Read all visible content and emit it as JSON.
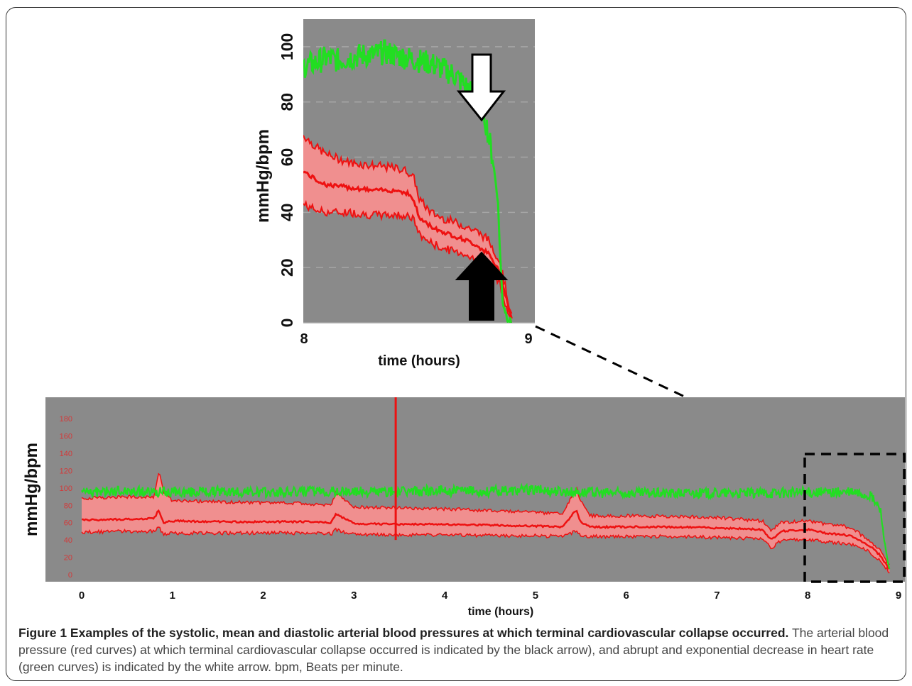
{
  "colors": {
    "plot_bg": "#8a8a8a",
    "gridline": "#a6a6a6",
    "heart_rate": "#22dd22",
    "blood_pressure_line": "#ee1111",
    "blood_pressure_band": "#f08f8f",
    "dashes": "#000000"
  },
  "icons": {
    "white_arrow": "down-arrow-icon",
    "black_arrow": "up-arrow-icon"
  },
  "caption": {
    "title": "Figure 1 Examples of the systolic, mean and diastolic arterial blood pressures at which terminal cardiovascular collapse occurred.",
    "body": "The arterial blood pressure (red curves) at which terminal cardiovascular collapse occurred is indicated by the black arrow), and abrupt and exponential decrease in heart rate (green curves) is indicated by the white arrow. bpm, Beats per minute."
  },
  "chart_data": [
    {
      "type": "line",
      "xlabel": "time (hours)",
      "ylabel": "mmHg/bpm",
      "xlim": [
        8,
        9
      ],
      "ylim": [
        0,
        110
      ],
      "xticks": [
        "8",
        "9"
      ],
      "yticks": [
        "0",
        "20",
        "40",
        "60",
        "80",
        "100"
      ],
      "grid": true,
      "series": [
        {
          "key": "heart_rate",
          "x": [
            8.0,
            8.05,
            8.1,
            8.15,
            8.2,
            8.25,
            8.3,
            8.35,
            8.4,
            8.45,
            8.5,
            8.55,
            8.6,
            8.65,
            8.7,
            8.75,
            8.78,
            8.8,
            8.82,
            8.84,
            8.85,
            8.86,
            8.88,
            8.9
          ],
          "y": [
            93,
            94,
            96,
            95,
            96,
            97,
            97,
            98,
            97,
            96,
            95,
            94,
            92,
            90,
            86,
            81,
            76,
            68,
            58,
            45,
            25,
            8,
            2,
            0
          ]
        },
        {
          "key": "systolic",
          "x": [
            8.0,
            8.05,
            8.1,
            8.2,
            8.3,
            8.4,
            8.45,
            8.48,
            8.5,
            8.55,
            8.6,
            8.7,
            8.75,
            8.8,
            8.85,
            8.88,
            8.9
          ],
          "y": [
            68,
            64,
            61,
            58,
            57,
            56,
            55,
            52,
            45,
            40,
            38,
            35,
            33,
            30,
            22,
            10,
            2
          ]
        },
        {
          "key": "mean",
          "x": [
            8.0,
            8.05,
            8.1,
            8.2,
            8.3,
            8.4,
            8.45,
            8.48,
            8.5,
            8.55,
            8.6,
            8.7,
            8.75,
            8.8,
            8.85,
            8.88,
            8.9
          ],
          "y": [
            55,
            52,
            50,
            49,
            48,
            48,
            47,
            44,
            38,
            35,
            33,
            30,
            28,
            25,
            18,
            8,
            1
          ]
        },
        {
          "key": "diastolic",
          "x": [
            8.0,
            8.05,
            8.1,
            8.2,
            8.3,
            8.4,
            8.45,
            8.48,
            8.5,
            8.55,
            8.6,
            8.7,
            8.75,
            8.8,
            8.85,
            8.88,
            8.9
          ],
          "y": [
            43,
            41,
            40,
            40,
            39,
            39,
            39,
            37,
            32,
            29,
            27,
            25,
            22,
            19,
            14,
            5,
            0
          ]
        }
      ],
      "annotations": [
        "white arrow pointing down at heart rate decline (~8.78 h)",
        "black arrow pointing up at blood pressure collapse (~8.78 h)"
      ]
    },
    {
      "type": "line",
      "xlabel": "time (hours)",
      "ylabel": "mmHg/bpm",
      "xlim": [
        0,
        9
      ],
      "ylim": [
        0,
        190
      ],
      "xticks": [
        "0",
        "1",
        "2",
        "3",
        "4",
        "5",
        "6",
        "7",
        "8",
        "9"
      ],
      "yticks": [
        "0",
        "20",
        "40",
        "60",
        "80",
        "100",
        "120",
        "140",
        "160",
        "180"
      ],
      "grid": false,
      "series": [
        {
          "key": "heart_rate",
          "x": [
            0,
            0.5,
            1,
            1.5,
            2,
            2.5,
            3,
            3.5,
            4,
            4.5,
            5,
            5.5,
            6,
            6.5,
            7,
            7.5,
            8,
            8.3,
            8.5,
            8.6,
            8.7,
            8.8,
            8.85,
            8.9
          ],
          "y": [
            95,
            96,
            95,
            96,
            95,
            96,
            96,
            96,
            97,
            96,
            98,
            95,
            94,
            94,
            94,
            94,
            95,
            95,
            95,
            93,
            90,
            75,
            35,
            5
          ]
        },
        {
          "key": "systolic",
          "x": [
            0,
            0.5,
            0.8,
            0.85,
            0.9,
            1,
            1.5,
            2,
            2.5,
            2.75,
            2.8,
            3,
            3.5,
            4,
            4.5,
            5,
            5.3,
            5.45,
            5.5,
            5.6,
            6,
            6.5,
            7,
            7.5,
            7.6,
            7.7,
            8,
            8.2,
            8.4,
            8.5,
            8.6,
            8.7,
            8.8,
            8.9
          ],
          "y": [
            88,
            90,
            90,
            120,
            95,
            85,
            84,
            83,
            82,
            80,
            95,
            78,
            77,
            76,
            74,
            72,
            70,
            100,
            85,
            68,
            68,
            67,
            66,
            62,
            50,
            60,
            62,
            58,
            56,
            53,
            45,
            38,
            28,
            10
          ]
        },
        {
          "key": "mean",
          "x": [
            0,
            0.5,
            0.8,
            0.85,
            0.9,
            1,
            1.5,
            2,
            2.5,
            2.75,
            2.8,
            3,
            3.5,
            4,
            4.5,
            5,
            5.3,
            5.45,
            5.5,
            5.6,
            6,
            6.5,
            7,
            7.5,
            7.6,
            7.7,
            8,
            8.2,
            8.4,
            8.5,
            8.6,
            8.7,
            8.8,
            8.9
          ],
          "y": [
            63,
            64,
            65,
            75,
            60,
            62,
            61,
            61,
            61,
            60,
            70,
            59,
            58,
            58,
            57,
            56,
            55,
            75,
            60,
            55,
            55,
            55,
            54,
            52,
            40,
            50,
            52,
            48,
            46,
            44,
            38,
            32,
            22,
            6
          ]
        },
        {
          "key": "diastolic",
          "x": [
            0,
            0.5,
            0.8,
            0.85,
            0.9,
            1,
            1.5,
            2,
            2.5,
            2.75,
            2.8,
            3,
            3.5,
            4,
            4.5,
            5,
            5.3,
            5.45,
            5.5,
            5.6,
            6,
            6.5,
            7,
            7.5,
            7.6,
            7.7,
            8,
            8.2,
            8.4,
            8.5,
            8.6,
            8.7,
            8.8,
            8.9
          ],
          "y": [
            49,
            50,
            50,
            55,
            47,
            48,
            48,
            48,
            48,
            47,
            52,
            46,
            46,
            46,
            45,
            45,
            44,
            50,
            46,
            44,
            44,
            44,
            43,
            41,
            30,
            39,
            41,
            38,
            36,
            34,
            30,
            25,
            15,
            3
          ]
        }
      ],
      "annotations": [
        "dashed box marking the 8–9 h interval enlarged above"
      ]
    }
  ]
}
